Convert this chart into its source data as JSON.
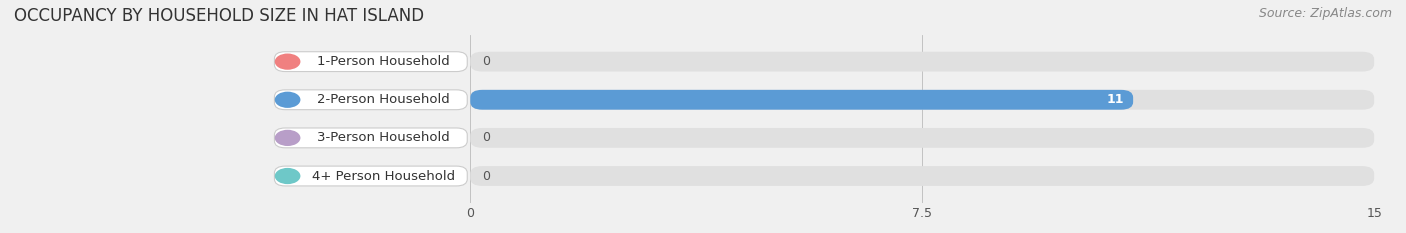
{
  "title": "OCCUPANCY BY HOUSEHOLD SIZE IN HAT ISLAND",
  "source": "Source: ZipAtlas.com",
  "categories": [
    "1-Person Household",
    "2-Person Household",
    "3-Person Household",
    "4+ Person Household"
  ],
  "values": [
    0,
    11,
    0,
    0
  ],
  "bar_colors": [
    "#f08080",
    "#5b9bd5",
    "#b89ec8",
    "#6ec8c8"
  ],
  "xlim": [
    0,
    15
  ],
  "xticks": [
    0,
    7.5,
    15
  ],
  "background_color": "#f0f0f0",
  "bar_background_color": "#e0e0e0",
  "bar_height": 0.52,
  "title_fontsize": 12,
  "label_fontsize": 9.5,
  "value_fontsize": 9,
  "source_fontsize": 9
}
